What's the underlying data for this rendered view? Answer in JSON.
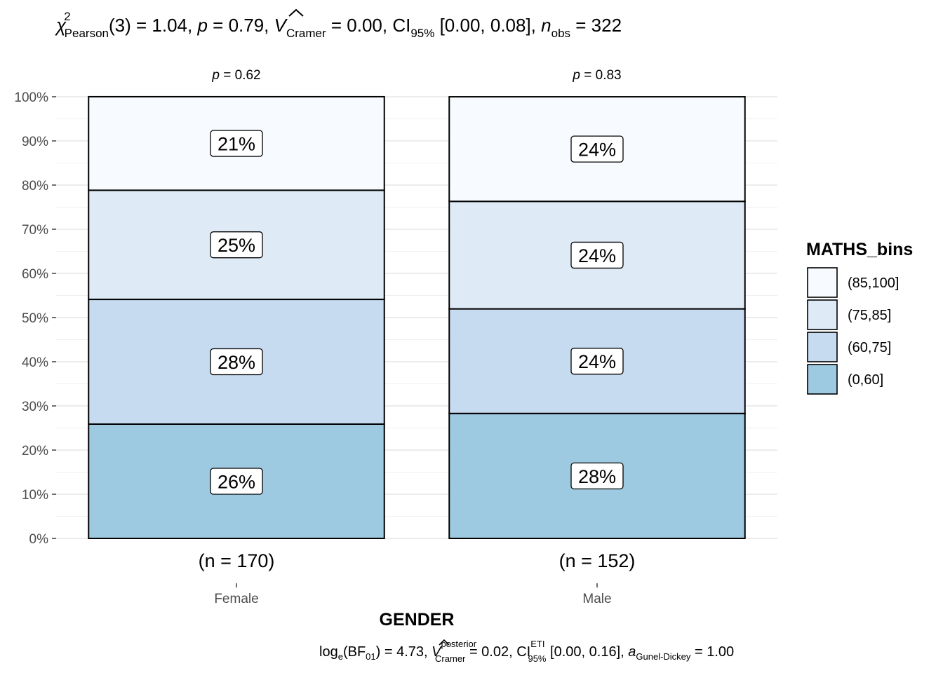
{
  "chart_data": {
    "type": "bar",
    "stacked": "percent",
    "subtitle": {
      "chi_symbol": "χ",
      "chi_sup": "2",
      "chi_sub": "Pearson",
      "df": "(3) = 1.04, ",
      "p_sym": "p",
      "p_val": " = 0.79, ",
      "v_sym": "V",
      "v_sub": "Cramer",
      "v_val": " = 0.00, CI",
      "ci_sub": "95%",
      "ci_val": " [0.00, 0.08], ",
      "n_sym": "n",
      "n_sub": "obs",
      "n_val": " = 322"
    },
    "caption": {
      "log": "log",
      "log_sub": "e",
      "bf": "(BF",
      "bf_sub": "01",
      "bf_val": ") = 4.73, ",
      "v_sym": "V",
      "v_sup": "posterior",
      "v_sub": "Cramer",
      "v_val": " = 0.02, CI",
      "ci_sup": "ETI",
      "ci_sub": "95%",
      "ci_val": " [0.00, 0.16], ",
      "a_sym": "a",
      "a_sub": "Gunel-Dickey",
      "a_val": " = 1.00"
    },
    "xlabel": "GENDER",
    "ylabel": "",
    "ylim": [
      0,
      100
    ],
    "y_ticks": [
      "0%",
      "10%",
      "20%",
      "30%",
      "40%",
      "50%",
      "60%",
      "70%",
      "80%",
      "90%",
      "100%"
    ],
    "categories": [
      "Female",
      "Male"
    ],
    "counts": [
      "(n = 170)",
      "(n = 152)"
    ],
    "pvalues": [
      {
        "sym": "p",
        "val": " = 0.62"
      },
      {
        "sym": "p",
        "val": " = 0.83"
      }
    ],
    "legend_title": "MATHS_bins",
    "legend_position": "right",
    "grid": true,
    "series": [
      {
        "name": "(0,60]",
        "color": "#9ECAE1",
        "values": [
          25.88,
          28.29
        ],
        "labels": [
          "26%",
          "28%"
        ]
      },
      {
        "name": "(60,75]",
        "color": "#C6DBEF",
        "values": [
          28.24,
          23.68
        ],
        "labels": [
          "28%",
          "24%"
        ]
      },
      {
        "name": "(75,85]",
        "color": "#DEEBF7",
        "values": [
          24.71,
          24.34
        ],
        "labels": [
          "25%",
          "24%"
        ]
      },
      {
        "name": "(85,100]",
        "color": "#F7FBFF",
        "values": [
          21.18,
          23.68
        ],
        "labels": [
          "21%",
          "24%"
        ]
      }
    ],
    "legend_order": [
      "(85,100]",
      "(75,85]",
      "(60,75]",
      "(0,60]"
    ]
  }
}
